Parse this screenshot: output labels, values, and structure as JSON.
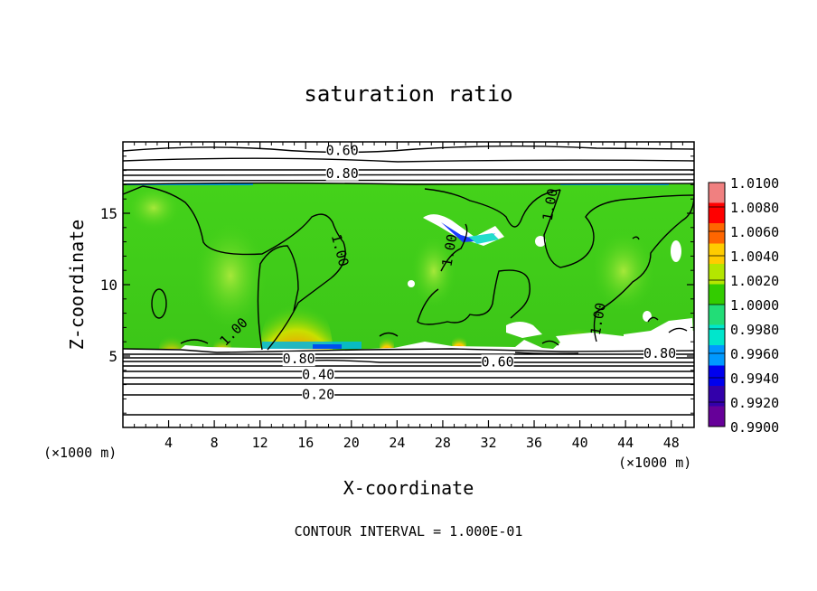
{
  "chart_data": {
    "type": "heatmap",
    "title": "saturation ratio",
    "xlabel": "X-coordinate",
    "ylabel": "Z-coordinate",
    "x_unit_left": "(×1000 m)",
    "x_unit_right": "(×1000 m)",
    "xlim": [
      0,
      50
    ],
    "ylim": [
      0,
      20
    ],
    "x_ticks": [
      4,
      8,
      12,
      16,
      20,
      24,
      28,
      32,
      36,
      40,
      44,
      48
    ],
    "y_ticks": [
      5,
      10,
      15
    ],
    "footer": "CONTOUR INTERVAL = 1.000E-01",
    "colorbar": {
      "levels": [
        "1.0100",
        "1.0080",
        "1.0060",
        "1.0040",
        "1.0020",
        "1.0000",
        "0.9980",
        "0.9960",
        "0.9940",
        "0.9920",
        "0.9900"
      ],
      "colors": [
        "#f08080",
        "#ff0000",
        "#ff6600",
        "#ffcc00",
        "#b4e600",
        "#33cc00",
        "#22dd77",
        "#00e6cc",
        "#0099ff",
        "#0000ee",
        "#3300aa",
        "#660099"
      ]
    },
    "contour_labels": [
      {
        "text": "0.60",
        "x": 19.2,
        "z": 19.4
      },
      {
        "text": "0.80",
        "x": 19.2,
        "z": 17.8
      },
      {
        "text": "1.00",
        "x": 19.0,
        "z": 12.4
      },
      {
        "text": "1.00",
        "x": 9.7,
        "z": 6.7
      },
      {
        "text": "1.00",
        "x": 28.6,
        "z": 12.4
      },
      {
        "text": "1.00",
        "x": 37.4,
        "z": 15.6
      },
      {
        "text": "1.00",
        "x": 41.6,
        "z": 7.6
      },
      {
        "text": "0.80",
        "x": 15.4,
        "z": 4.8
      },
      {
        "text": "0.40",
        "x": 17.1,
        "z": 3.7
      },
      {
        "text": "0.20",
        "x": 17.1,
        "z": 2.3
      },
      {
        "text": "0.60",
        "x": 32.8,
        "z": 4.6
      },
      {
        "text": "0.80",
        "x": 47.0,
        "z": 5.2
      }
    ]
  }
}
